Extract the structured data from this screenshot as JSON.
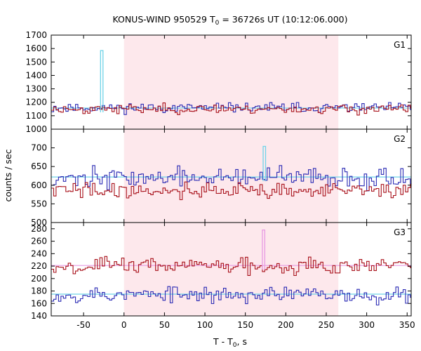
{
  "chart_data": {
    "type": "line",
    "title": "KONUS-WIND 950529 T",
    "title_sub": "0",
    "title_rest": " = 36726s UT (10:12:06.000)",
    "xlabel": "T - T",
    "xlabel_sub": "0",
    "xlabel_rest": ", s",
    "ylabel": "counts / sec",
    "xlim": [
      -90,
      355
    ],
    "xticks": [
      -50,
      0,
      50,
      100,
      150,
      200,
      250,
      300,
      350
    ],
    "highlight_band": {
      "from": 0,
      "to": 265,
      "color": "#fde8ec"
    },
    "colors": {
      "blue": "#2a2ab4",
      "red": "#a8101a",
      "cyan": "#6fd3e8",
      "pink": "#e79ae3"
    },
    "panels": [
      {
        "label": "G1",
        "ylim": [
          1000,
          1700
        ],
        "yticks": [
          1000,
          1100,
          1200,
          1300,
          1400,
          1500,
          1600,
          1700
        ],
        "series": [
          {
            "color": "blue",
            "mean": 1160,
            "sigma": 17,
            "seed": 11
          },
          {
            "color": "red",
            "mean": 1150,
            "sigma": 17,
            "seed": 23
          }
        ],
        "fit_line": {
          "color": "cyan",
          "value": 1157
        },
        "spike": {
          "color": "cyan",
          "x_from": -29,
          "x_to": -26,
          "value": 1585
        }
      },
      {
        "label": "G2",
        "ylim": [
          500,
          750
        ],
        "yticks": [
          500,
          550,
          600,
          650,
          700
        ],
        "series": [
          {
            "color": "blue",
            "mean": 620,
            "sigma": 13,
            "seed": 37
          },
          {
            "color": "red",
            "mean": 586,
            "sigma": 11,
            "seed": 41
          }
        ],
        "fit_line": {
          "color": "cyan",
          "value": 622
        },
        "spike": {
          "color": "cyan",
          "x_from": 172,
          "x_to": 175,
          "value": 704
        }
      },
      {
        "label": "G3",
        "ylim": [
          140,
          290
        ],
        "yticks": [
          140,
          160,
          180,
          200,
          220,
          240,
          260,
          280
        ],
        "series": [
          {
            "color": "blue",
            "mean": 174,
            "sigma": 6.5,
            "seed": 53
          },
          {
            "color": "red",
            "mean": 221,
            "sigma": 6.5,
            "seed": 67
          }
        ],
        "fit_line": {
          "color": "pink",
          "value": 221
        },
        "fit_line_2": {
          "color": "cyan",
          "value": 175
        },
        "spike": {
          "color": "pink",
          "x_from": 171,
          "x_to": 174,
          "value": 278
        }
      }
    ]
  }
}
